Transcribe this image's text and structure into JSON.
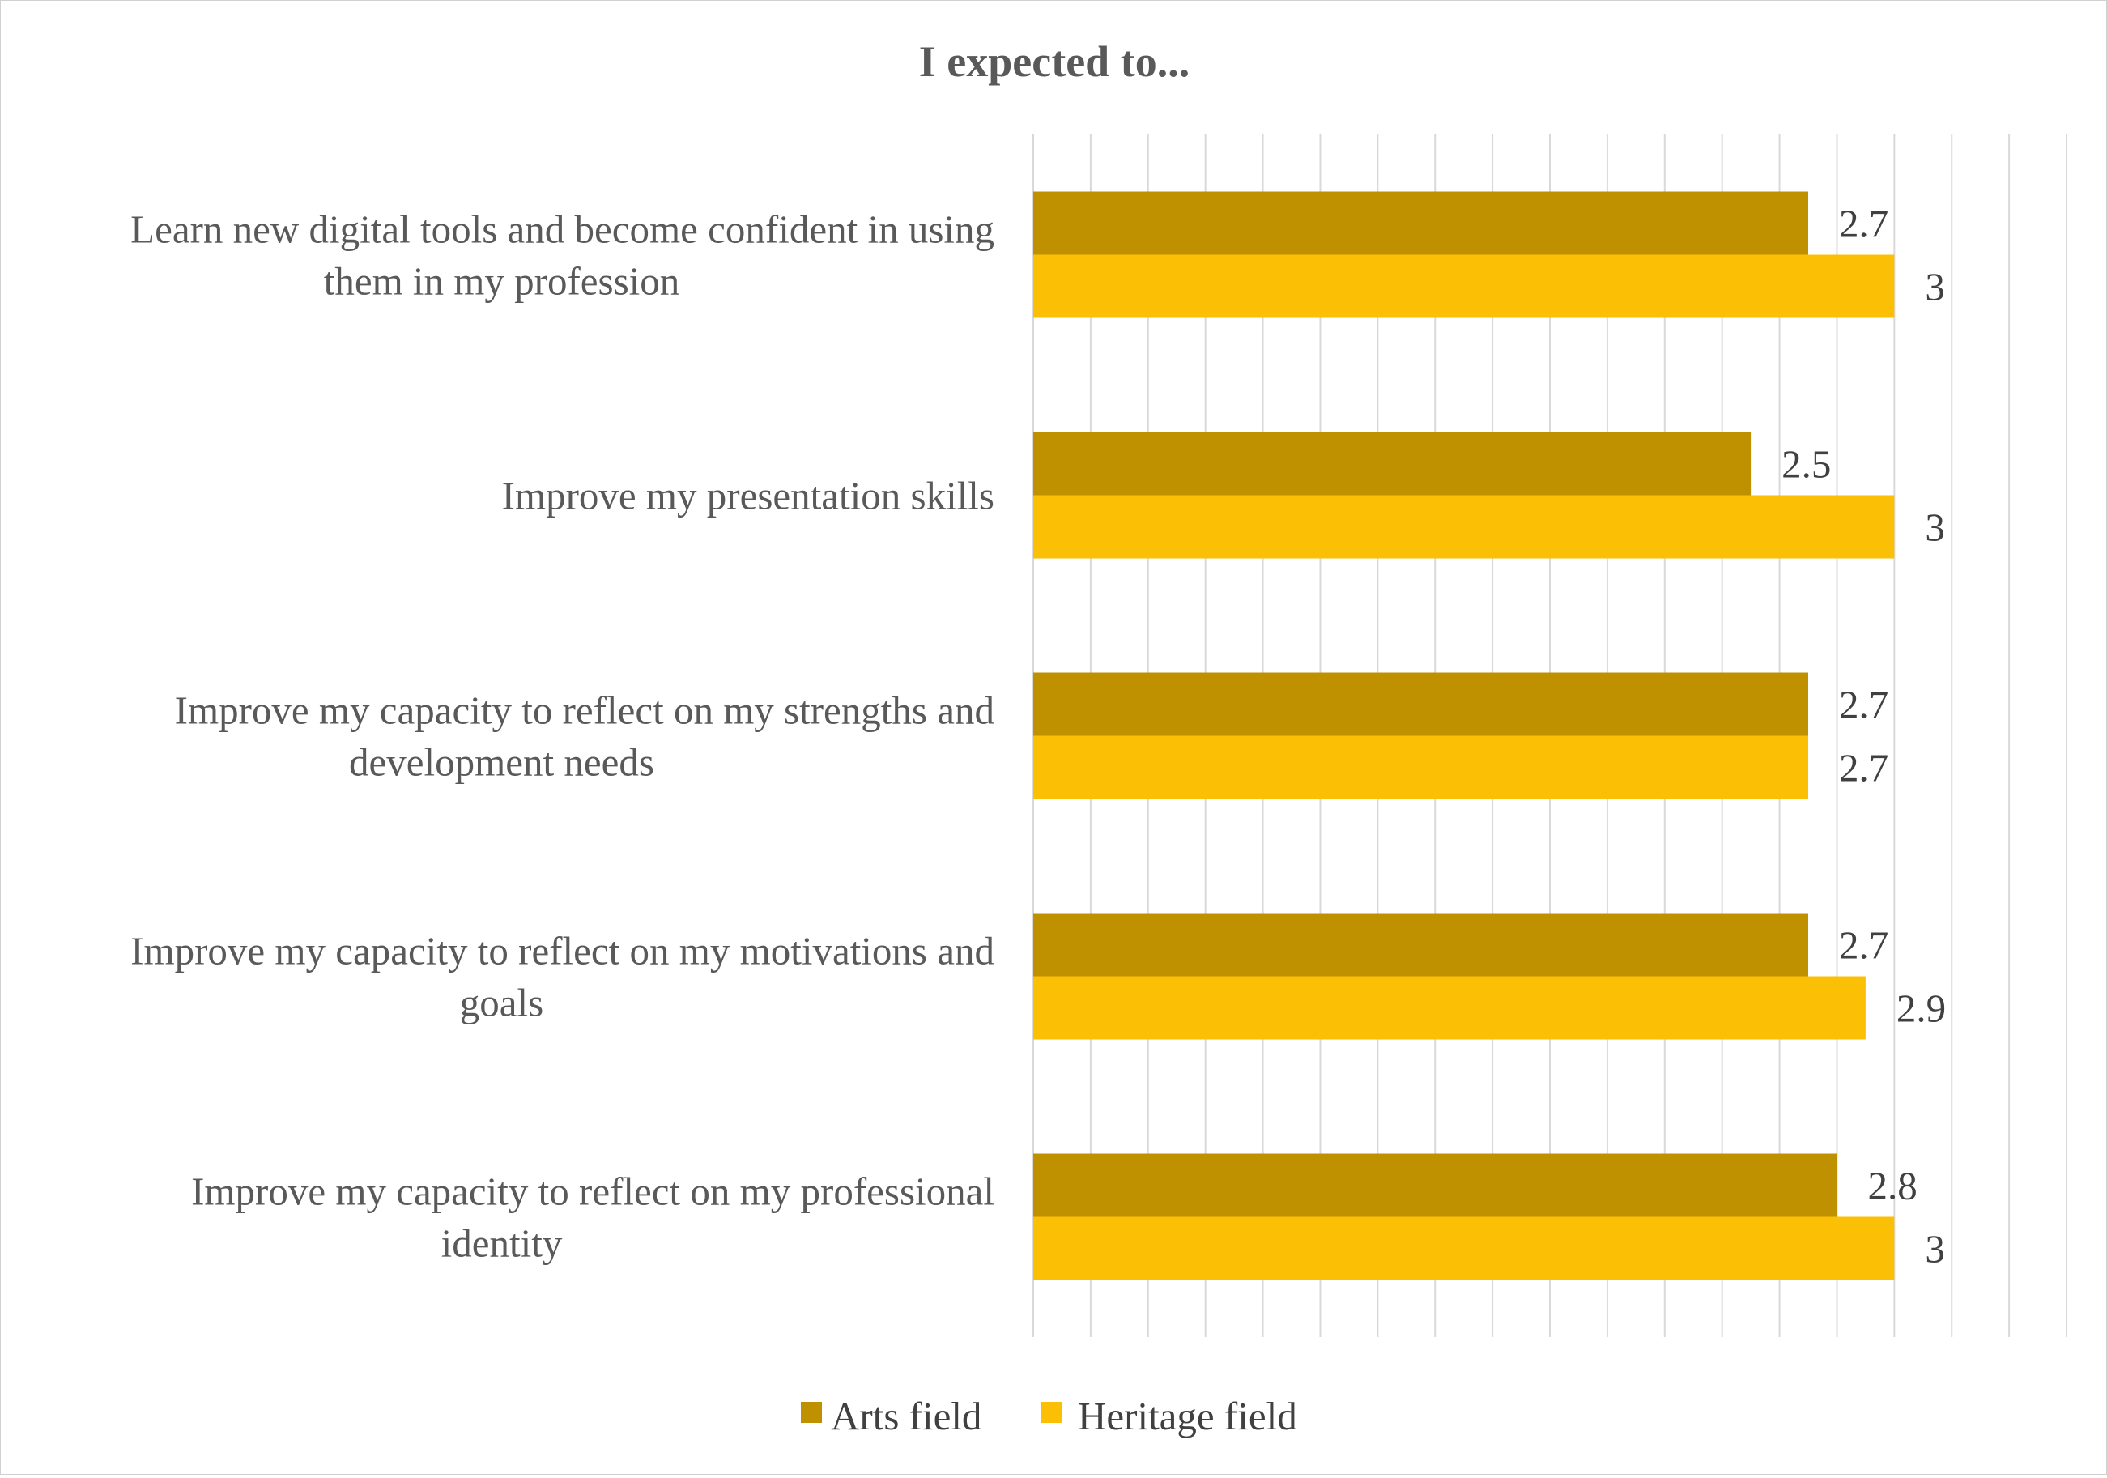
{
  "chart_data": {
    "type": "bar",
    "orientation": "horizontal",
    "title": "I expected to...",
    "categories": [
      [
        "Learn new digital tools and become confident in using",
        "them in my profession"
      ],
      [
        "Improve my presentation skills"
      ],
      [
        "Improve my capacity to reflect on my strengths and",
        "development needs"
      ],
      [
        "Improve my capacity to reflect on my motivations and",
        "goals"
      ],
      [
        "Improve my capacity to reflect on my professional",
        "identity"
      ]
    ],
    "series": [
      {
        "name": "Arts field",
        "color": "#bf9000",
        "values": [
          2.7,
          2.5,
          2.7,
          2.7,
          2.8
        ],
        "labels": [
          "2.7",
          "2.5",
          "2.7",
          "2.7",
          "2.8"
        ]
      },
      {
        "name": "Heritage field",
        "color": "#fbbf05",
        "values": [
          3,
          3,
          2.7,
          2.9,
          3
        ],
        "labels": [
          "3",
          "3",
          "2.7",
          "2.9",
          "3"
        ]
      }
    ],
    "xlim": [
      0,
      3.6
    ],
    "grid_step": 0.2,
    "grid": true,
    "legend_position": "bottom"
  }
}
